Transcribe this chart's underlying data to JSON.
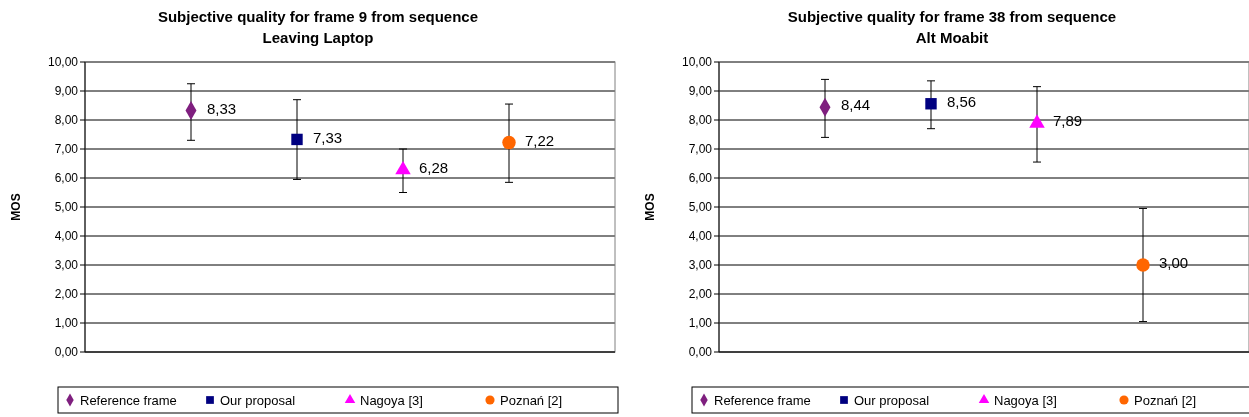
{
  "chart_data": [
    {
      "type": "scatter",
      "title": "Subjective quality for frame 9 from sequence\nLeaving Laptop",
      "ylabel": "MOS",
      "categories": [
        null,
        null,
        null,
        null
      ],
      "ylim": [
        0,
        10
      ],
      "yticks": [
        {
          "value": 0,
          "label": "0,00"
        },
        {
          "value": 1,
          "label": "1,00"
        },
        {
          "value": 2,
          "label": "2,00"
        },
        {
          "value": 3,
          "label": "3,00"
        },
        {
          "value": 4,
          "label": "4,00"
        },
        {
          "value": 5,
          "label": "5,00"
        },
        {
          "value": 6,
          "label": "6,00"
        },
        {
          "value": 7,
          "label": "7,00"
        },
        {
          "value": 8,
          "label": "8,00"
        },
        {
          "value": 9,
          "label": "9,00"
        },
        {
          "value": 10,
          "label": "10,00"
        }
      ],
      "grid": "y",
      "legend": "bottom",
      "series": [
        {
          "name": "Reference frame",
          "color": "#7f1f7f",
          "marker": "diamond",
          "values": [
            8.33,
            null,
            null,
            null
          ],
          "errors": [
            [
              7.3,
              9.25
            ],
            null,
            null,
            null
          ],
          "value_labels": [
            "8,33",
            null,
            null,
            null
          ]
        },
        {
          "name": "Our proposal",
          "color": "#000080",
          "marker": "square",
          "values": [
            null,
            7.33,
            null,
            null
          ],
          "errors": [
            null,
            [
              5.95,
              8.7
            ],
            null,
            null
          ],
          "value_labels": [
            null,
            "7,33",
            null,
            null
          ]
        },
        {
          "name": "Nagoya [3]",
          "color": "#ff00ff",
          "marker": "triangle",
          "values": [
            null,
            null,
            6.28,
            null
          ],
          "errors": [
            null,
            null,
            [
              5.5,
              7.0
            ],
            null
          ],
          "value_labels": [
            null,
            null,
            "6,28",
            null
          ]
        },
        {
          "name": "Poznań [2]",
          "color": "#ff6600",
          "marker": "circle",
          "values": [
            null,
            null,
            null,
            7.22
          ],
          "errors": [
            null,
            null,
            null,
            [
              5.85,
              8.55
            ]
          ],
          "value_labels": [
            null,
            null,
            null,
            "7,22"
          ]
        }
      ]
    },
    {
      "type": "scatter",
      "title": "Subjective quality for frame 38 from sequence\nAlt Moabit",
      "ylabel": "MOS",
      "categories": [
        null,
        null,
        null,
        null
      ],
      "ylim": [
        0,
        10
      ],
      "yticks": [
        {
          "value": 0,
          "label": "0,00"
        },
        {
          "value": 1,
          "label": "1,00"
        },
        {
          "value": 2,
          "label": "2,00"
        },
        {
          "value": 3,
          "label": "3,00"
        },
        {
          "value": 4,
          "label": "4,00"
        },
        {
          "value": 5,
          "label": "5,00"
        },
        {
          "value": 6,
          "label": "6,00"
        },
        {
          "value": 7,
          "label": "7,00"
        },
        {
          "value": 8,
          "label": "8,00"
        },
        {
          "value": 9,
          "label": "9,00"
        },
        {
          "value": 10,
          "label": "10,00"
        }
      ],
      "grid": "y",
      "legend": "bottom",
      "series": [
        {
          "name": "Reference frame",
          "color": "#7f1f7f",
          "marker": "diamond",
          "values": [
            8.44,
            null,
            null,
            null
          ],
          "errors": [
            [
              7.4,
              9.4
            ],
            null,
            null,
            null
          ],
          "value_labels": [
            "8,44",
            null,
            null,
            null
          ]
        },
        {
          "name": "Our proposal",
          "color": "#000080",
          "marker": "square",
          "values": [
            null,
            8.56,
            null,
            null
          ],
          "errors": [
            null,
            [
              7.7,
              9.35
            ],
            null,
            null
          ],
          "value_labels": [
            null,
            "8,56",
            null,
            null
          ]
        },
        {
          "name": "Nagoya [3]",
          "color": "#ff00ff",
          "marker": "triangle",
          "values": [
            null,
            null,
            7.89,
            null
          ],
          "errors": [
            null,
            null,
            [
              6.55,
              9.15
            ],
            null
          ],
          "value_labels": [
            null,
            null,
            "7,89",
            null
          ]
        },
        {
          "name": "Poznań [2]",
          "color": "#ff6600",
          "marker": "circle",
          "values": [
            null,
            null,
            null,
            3.0
          ],
          "errors": [
            null,
            null,
            null,
            [
              1.05,
              4.95
            ]
          ],
          "value_labels": [
            null,
            null,
            null,
            "3,00"
          ]
        }
      ]
    }
  ]
}
